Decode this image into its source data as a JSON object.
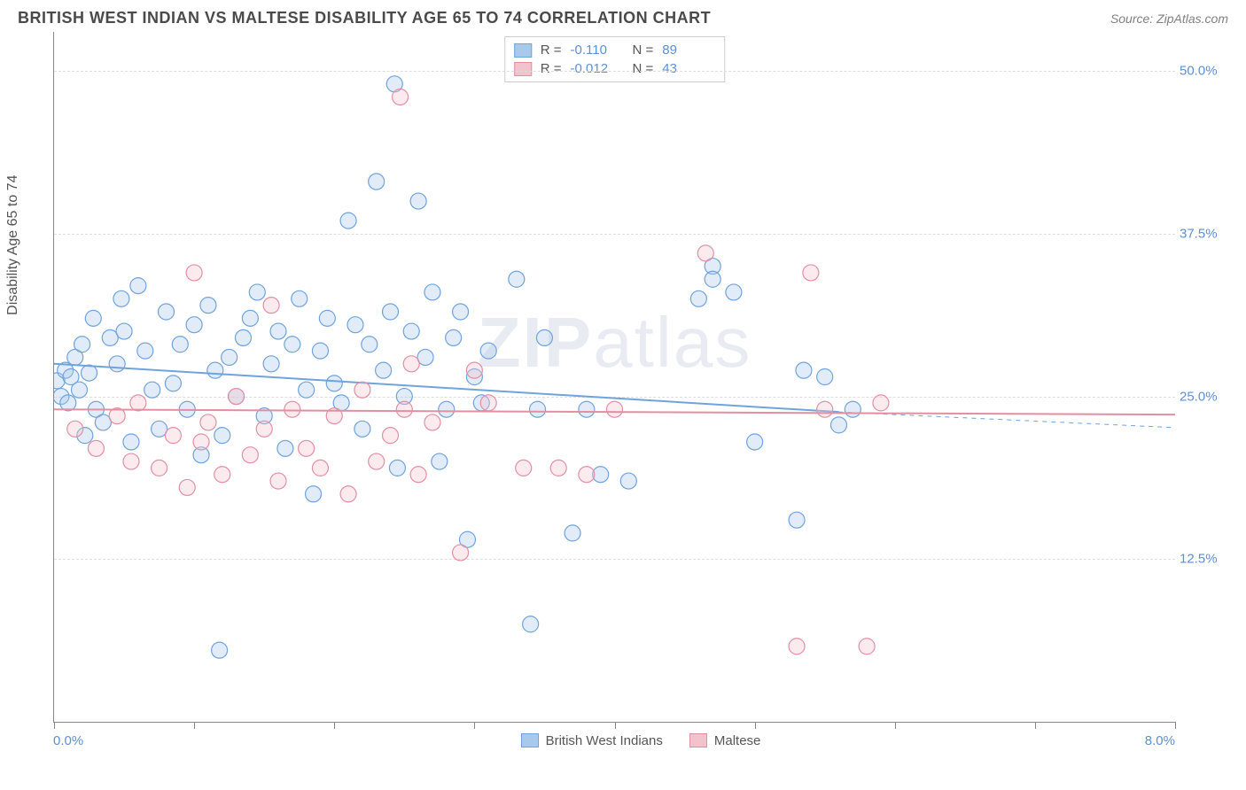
{
  "header": {
    "title": "BRITISH WEST INDIAN VS MALTESE DISABILITY AGE 65 TO 74 CORRELATION CHART",
    "source": "Source: ZipAtlas.com"
  },
  "watermark": {
    "bold": "ZIP",
    "thin": "atlas"
  },
  "chart": {
    "type": "scatter",
    "ylabel": "Disability Age 65 to 74",
    "background_color": "#ffffff",
    "grid_color": "#dddddd",
    "axis_color": "#888888",
    "label_color": "#5b8fd6",
    "xlim": [
      0.0,
      8.0
    ],
    "ylim": [
      0.0,
      53.0
    ],
    "xtick_positions": [
      0,
      1,
      2,
      3,
      4,
      5,
      6,
      7,
      8
    ],
    "ytick_labels": [
      {
        "v": 12.5,
        "label": "12.5%"
      },
      {
        "v": 25.0,
        "label": "25.0%"
      },
      {
        "v": 37.5,
        "label": "37.5%"
      },
      {
        "v": 50.0,
        "label": "50.0%"
      }
    ],
    "xaxis_min_label": "0.0%",
    "xaxis_max_label": "8.0%",
    "marker_radius": 9,
    "marker_fill_opacity": 0.35,
    "marker_stroke_width": 1.2,
    "line_width": 2
  },
  "stats_legend": {
    "rows": [
      {
        "color_fill": "#a8c8ec",
        "color_stroke": "#6fa3dd",
        "r_label": "R =",
        "r": "-0.110",
        "n_label": "N =",
        "n": "89"
      },
      {
        "color_fill": "#f3c3cd",
        "color_stroke": "#e38fa3",
        "r_label": "R =",
        "r": "-0.012",
        "n_label": "N =",
        "n": "43"
      }
    ]
  },
  "series_legend": {
    "items": [
      {
        "label": "British West Indians",
        "fill": "#a8c8ec",
        "stroke": "#6fa3dd"
      },
      {
        "label": "Maltese",
        "fill": "#f3c3cd",
        "stroke": "#e38fa3"
      }
    ]
  },
  "series": [
    {
      "name": "British West Indians",
      "fill": "#a8c8ec",
      "stroke": "#6fa3dd",
      "trend": {
        "x1": 0.0,
        "y1": 27.5,
        "x2": 5.6,
        "y2": 23.8,
        "dash_x2": 8.0,
        "dash_y2": 22.6
      },
      "points": [
        [
          0.02,
          26.2
        ],
        [
          0.05,
          25.0
        ],
        [
          0.08,
          27.0
        ],
        [
          0.1,
          24.5
        ],
        [
          0.12,
          26.5
        ],
        [
          0.15,
          28.0
        ],
        [
          0.18,
          25.5
        ],
        [
          0.2,
          29.0
        ],
        [
          0.22,
          22.0
        ],
        [
          0.25,
          26.8
        ],
        [
          0.28,
          31.0
        ],
        [
          0.3,
          24.0
        ],
        [
          0.35,
          23.0
        ],
        [
          0.4,
          29.5
        ],
        [
          0.45,
          27.5
        ],
        [
          0.48,
          32.5
        ],
        [
          0.5,
          30.0
        ],
        [
          0.55,
          21.5
        ],
        [
          0.6,
          33.5
        ],
        [
          0.65,
          28.5
        ],
        [
          0.7,
          25.5
        ],
        [
          0.75,
          22.5
        ],
        [
          0.8,
          31.5
        ],
        [
          0.85,
          26.0
        ],
        [
          0.9,
          29.0
        ],
        [
          0.95,
          24.0
        ],
        [
          1.0,
          30.5
        ],
        [
          1.05,
          20.5
        ],
        [
          1.1,
          32.0
        ],
        [
          1.15,
          27.0
        ],
        [
          1.18,
          5.5
        ],
        [
          1.2,
          22.0
        ],
        [
          1.25,
          28.0
        ],
        [
          1.3,
          25.0
        ],
        [
          1.35,
          29.5
        ],
        [
          1.4,
          31.0
        ],
        [
          1.45,
          33.0
        ],
        [
          1.5,
          23.5
        ],
        [
          1.55,
          27.5
        ],
        [
          1.6,
          30.0
        ],
        [
          1.65,
          21.0
        ],
        [
          1.7,
          29.0
        ],
        [
          1.75,
          32.5
        ],
        [
          1.8,
          25.5
        ],
        [
          1.85,
          17.5
        ],
        [
          1.9,
          28.5
        ],
        [
          1.95,
          31.0
        ],
        [
          2.0,
          26.0
        ],
        [
          2.05,
          24.5
        ],
        [
          2.1,
          38.5
        ],
        [
          2.15,
          30.5
        ],
        [
          2.2,
          22.5
        ],
        [
          2.25,
          29.0
        ],
        [
          2.3,
          41.5
        ],
        [
          2.35,
          27.0
        ],
        [
          2.4,
          31.5
        ],
        [
          2.43,
          49.0
        ],
        [
          2.45,
          19.5
        ],
        [
          2.5,
          25.0
        ],
        [
          2.55,
          30.0
        ],
        [
          2.6,
          40.0
        ],
        [
          2.65,
          28.0
        ],
        [
          2.7,
          33.0
        ],
        [
          2.75,
          20.0
        ],
        [
          2.8,
          24.0
        ],
        [
          2.85,
          29.5
        ],
        [
          2.9,
          31.5
        ],
        [
          2.95,
          14.0
        ],
        [
          3.0,
          26.5
        ],
        [
          3.05,
          24.5
        ],
        [
          3.1,
          28.5
        ],
        [
          3.3,
          34.0
        ],
        [
          3.4,
          7.5
        ],
        [
          3.45,
          24.0
        ],
        [
          3.5,
          29.5
        ],
        [
          3.7,
          14.5
        ],
        [
          3.8,
          24.0
        ],
        [
          3.9,
          19.0
        ],
        [
          4.1,
          18.5
        ],
        [
          4.6,
          32.5
        ],
        [
          4.7,
          35.0
        ],
        [
          4.7,
          34.0
        ],
        [
          4.85,
          33.0
        ],
        [
          5.0,
          21.5
        ],
        [
          5.3,
          15.5
        ],
        [
          5.35,
          27.0
        ],
        [
          5.5,
          26.5
        ],
        [
          5.6,
          22.8
        ],
        [
          5.7,
          24.0
        ]
      ]
    },
    {
      "name": "Maltese",
      "fill": "#f3c3cd",
      "stroke": "#e38fa3",
      "trend": {
        "x1": 0.0,
        "y1": 24.0,
        "x2": 8.0,
        "y2": 23.6,
        "dash_x2": 8.0,
        "dash_y2": 23.6
      },
      "points": [
        [
          0.15,
          22.5
        ],
        [
          0.3,
          21.0
        ],
        [
          0.45,
          23.5
        ],
        [
          0.55,
          20.0
        ],
        [
          0.6,
          24.5
        ],
        [
          0.75,
          19.5
        ],
        [
          0.85,
          22.0
        ],
        [
          0.95,
          18.0
        ],
        [
          1.0,
          34.5
        ],
        [
          1.05,
          21.5
        ],
        [
          1.1,
          23.0
        ],
        [
          1.2,
          19.0
        ],
        [
          1.3,
          25.0
        ],
        [
          1.4,
          20.5
        ],
        [
          1.5,
          22.5
        ],
        [
          1.55,
          32.0
        ],
        [
          1.6,
          18.5
        ],
        [
          1.7,
          24.0
        ],
        [
          1.8,
          21.0
        ],
        [
          1.9,
          19.5
        ],
        [
          2.0,
          23.5
        ],
        [
          2.1,
          17.5
        ],
        [
          2.2,
          25.5
        ],
        [
          2.3,
          20.0
        ],
        [
          2.4,
          22.0
        ],
        [
          2.47,
          48.0
        ],
        [
          2.5,
          24.0
        ],
        [
          2.55,
          27.5
        ],
        [
          2.6,
          19.0
        ],
        [
          2.7,
          23.0
        ],
        [
          2.9,
          13.0
        ],
        [
          3.0,
          27.0
        ],
        [
          3.1,
          24.5
        ],
        [
          3.35,
          19.5
        ],
        [
          3.6,
          19.5
        ],
        [
          3.8,
          19.0
        ],
        [
          4.0,
          24.0
        ],
        [
          4.65,
          36.0
        ],
        [
          5.3,
          5.8
        ],
        [
          5.4,
          34.5
        ],
        [
          5.5,
          24.0
        ],
        [
          5.8,
          5.8
        ],
        [
          5.9,
          24.5
        ]
      ]
    }
  ]
}
